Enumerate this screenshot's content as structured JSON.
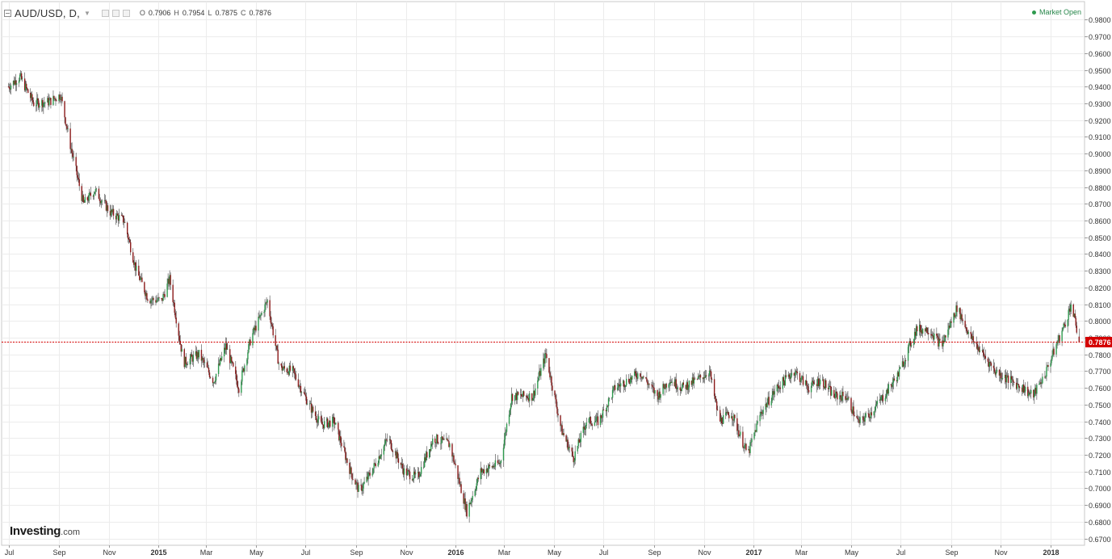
{
  "header": {
    "symbol": "AUD/USD, D,",
    "ohlc": [
      {
        "k": "O",
        "v": "0.7906"
      },
      {
        "k": "H",
        "v": "0.7954"
      },
      {
        "k": "L",
        "v": "0.7875"
      },
      {
        "k": "C",
        "v": "0.7876"
      }
    ]
  },
  "status": {
    "market_label": "Market Open",
    "color": "#2e9a4e"
  },
  "brand": {
    "name": "Investing",
    "suffix": ".com"
  },
  "chart_data": {
    "type": "candlestick",
    "timeframe": "D",
    "ylim": [
      0.665,
      0.98
    ],
    "y_ticks": [
      "0.6700",
      "0.6800",
      "0.6900",
      "0.7000",
      "0.7100",
      "0.7200",
      "0.7300",
      "0.7400",
      "0.7500",
      "0.7600",
      "0.7700",
      "0.7800",
      "0.7900",
      "0.8000",
      "0.8100",
      "0.8200",
      "0.8300",
      "0.8400",
      "0.8500",
      "0.8600",
      "0.8700",
      "0.8800",
      "0.8900",
      "0.9000",
      "0.9100",
      "0.9200",
      "0.9300",
      "0.9400",
      "0.9500",
      "0.9600",
      "0.9700",
      "0.9800"
    ],
    "x_ticks": [
      {
        "label": "Jul",
        "date": "2014-07-01"
      },
      {
        "label": "Sep",
        "date": "2014-09-01"
      },
      {
        "label": "Nov",
        "date": "2014-11-01"
      },
      {
        "label": "2015",
        "date": "2015-01-01"
      },
      {
        "label": "Mar",
        "date": "2015-03-01"
      },
      {
        "label": "May",
        "date": "2015-05-01"
      },
      {
        "label": "Jul",
        "date": "2015-07-01"
      },
      {
        "label": "Sep",
        "date": "2015-09-01"
      },
      {
        "label": "Nov",
        "date": "2015-11-01"
      },
      {
        "label": "2016",
        "date": "2016-01-01"
      },
      {
        "label": "Mar",
        "date": "2016-03-01"
      },
      {
        "label": "May",
        "date": "2016-05-01"
      },
      {
        "label": "Jul",
        "date": "2016-07-01"
      },
      {
        "label": "Sep",
        "date": "2016-09-01"
      },
      {
        "label": "Nov",
        "date": "2016-11-01"
      },
      {
        "label": "2017",
        "date": "2017-01-01"
      },
      {
        "label": "Mar",
        "date": "2017-03-01"
      },
      {
        "label": "May",
        "date": "2017-05-01"
      },
      {
        "label": "Jul",
        "date": "2017-07-01"
      },
      {
        "label": "Sep",
        "date": "2017-09-01"
      },
      {
        "label": "Nov",
        "date": "2017-11-01"
      },
      {
        "label": "2018",
        "date": "2018-01-01"
      }
    ],
    "last_price": "0.7876",
    "colors": {
      "up": "#2e9a4e",
      "down": "#8b1a1a",
      "wick": "#444444",
      "price_line": "#d40000",
      "grid": "#ececec"
    },
    "price_path": [
      {
        "date": "2014-07-01",
        "close": 0.94
      },
      {
        "date": "2014-07-15",
        "close": 0.946
      },
      {
        "date": "2014-08-01",
        "close": 0.93
      },
      {
        "date": "2014-08-20",
        "close": 0.931
      },
      {
        "date": "2014-09-03",
        "close": 0.935
      },
      {
        "date": "2014-09-15",
        "close": 0.905
      },
      {
        "date": "2014-10-01",
        "close": 0.87
      },
      {
        "date": "2014-10-15",
        "close": 0.878
      },
      {
        "date": "2014-11-03",
        "close": 0.865
      },
      {
        "date": "2014-11-20",
        "close": 0.86
      },
      {
        "date": "2014-12-05",
        "close": 0.83
      },
      {
        "date": "2014-12-20",
        "close": 0.813
      },
      {
        "date": "2015-01-05",
        "close": 0.812
      },
      {
        "date": "2015-01-15",
        "close": 0.825
      },
      {
        "date": "2015-02-01",
        "close": 0.775
      },
      {
        "date": "2015-02-20",
        "close": 0.78
      },
      {
        "date": "2015-03-10",
        "close": 0.764
      },
      {
        "date": "2015-03-25",
        "close": 0.785
      },
      {
        "date": "2015-04-10",
        "close": 0.76
      },
      {
        "date": "2015-04-25",
        "close": 0.79
      },
      {
        "date": "2015-05-15",
        "close": 0.812
      },
      {
        "date": "2015-05-30",
        "close": 0.772
      },
      {
        "date": "2015-06-15",
        "close": 0.77
      },
      {
        "date": "2015-07-05",
        "close": 0.75
      },
      {
        "date": "2015-07-20",
        "close": 0.738
      },
      {
        "date": "2015-08-05",
        "close": 0.74
      },
      {
        "date": "2015-08-25",
        "close": 0.71
      },
      {
        "date": "2015-09-05",
        "close": 0.698
      },
      {
        "date": "2015-09-20",
        "close": 0.71
      },
      {
        "date": "2015-10-10",
        "close": 0.73
      },
      {
        "date": "2015-10-30",
        "close": 0.71
      },
      {
        "date": "2015-11-15",
        "close": 0.706
      },
      {
        "date": "2015-12-05",
        "close": 0.73
      },
      {
        "date": "2015-12-25",
        "close": 0.726
      },
      {
        "date": "2016-01-15",
        "close": 0.686
      },
      {
        "date": "2016-02-01",
        "close": 0.71
      },
      {
        "date": "2016-02-25",
        "close": 0.715
      },
      {
        "date": "2016-03-10",
        "close": 0.755
      },
      {
        "date": "2016-04-05",
        "close": 0.755
      },
      {
        "date": "2016-04-21",
        "close": 0.78
      },
      {
        "date": "2016-05-10",
        "close": 0.735
      },
      {
        "date": "2016-05-25",
        "close": 0.718
      },
      {
        "date": "2016-06-10",
        "close": 0.74
      },
      {
        "date": "2016-06-25",
        "close": 0.74
      },
      {
        "date": "2016-07-15",
        "close": 0.76
      },
      {
        "date": "2016-08-01",
        "close": 0.765
      },
      {
        "date": "2016-08-15",
        "close": 0.769
      },
      {
        "date": "2016-09-05",
        "close": 0.755
      },
      {
        "date": "2016-09-20",
        "close": 0.765
      },
      {
        "date": "2016-10-05",
        "close": 0.76
      },
      {
        "date": "2016-10-25",
        "close": 0.765
      },
      {
        "date": "2016-11-08",
        "close": 0.77
      },
      {
        "date": "2016-11-20",
        "close": 0.74
      },
      {
        "date": "2016-12-05",
        "close": 0.745
      },
      {
        "date": "2016-12-25",
        "close": 0.72
      },
      {
        "date": "2017-01-10",
        "close": 0.745
      },
      {
        "date": "2017-01-30",
        "close": 0.76
      },
      {
        "date": "2017-02-20",
        "close": 0.77
      },
      {
        "date": "2017-03-10",
        "close": 0.76
      },
      {
        "date": "2017-03-25",
        "close": 0.765
      },
      {
        "date": "2017-04-10",
        "close": 0.755
      },
      {
        "date": "2017-04-25",
        "close": 0.755
      },
      {
        "date": "2017-05-10",
        "close": 0.739
      },
      {
        "date": "2017-05-25",
        "close": 0.745
      },
      {
        "date": "2017-06-10",
        "close": 0.755
      },
      {
        "date": "2017-06-28",
        "close": 0.768
      },
      {
        "date": "2017-07-20",
        "close": 0.795
      },
      {
        "date": "2017-08-05",
        "close": 0.795
      },
      {
        "date": "2017-08-20",
        "close": 0.785
      },
      {
        "date": "2017-09-08",
        "close": 0.808
      },
      {
        "date": "2017-09-25",
        "close": 0.79
      },
      {
        "date": "2017-10-10",
        "close": 0.78
      },
      {
        "date": "2017-10-25",
        "close": 0.77
      },
      {
        "date": "2017-11-10",
        "close": 0.765
      },
      {
        "date": "2017-11-28",
        "close": 0.76
      },
      {
        "date": "2017-12-10",
        "close": 0.755
      },
      {
        "date": "2017-12-25",
        "close": 0.768
      },
      {
        "date": "2018-01-10",
        "close": 0.788
      },
      {
        "date": "2018-01-20",
        "close": 0.8
      },
      {
        "date": "2018-01-26",
        "close": 0.81
      },
      {
        "date": "2018-02-02",
        "close": 0.795
      },
      {
        "date": "2018-02-05",
        "close": 0.7876
      }
    ]
  }
}
